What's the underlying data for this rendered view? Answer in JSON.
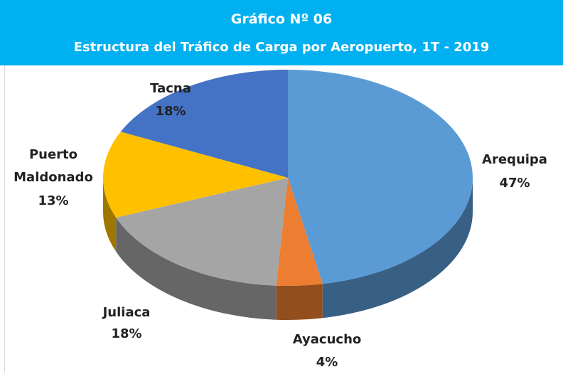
{
  "chart_data": {
    "type": "pie",
    "title": "Gráfico Nº 06",
    "subtitle": "Estructura del Tráfico de Carga por Aeropuerto, 1T - 2019",
    "categories": [
      "Arequipa",
      "Ayacucho",
      "Juliaca",
      "Puerto Maldonado",
      "Tacna"
    ],
    "values": [
      47,
      4,
      18,
      13,
      18
    ],
    "value_labels": [
      "47%",
      "4%",
      "18%",
      "13%",
      "18%"
    ],
    "colors": [
      "#5b9bd5",
      "#ed7d31",
      "#a5a5a5",
      "#ffc000",
      "#4472c4"
    ],
    "start_angle": 0
  }
}
